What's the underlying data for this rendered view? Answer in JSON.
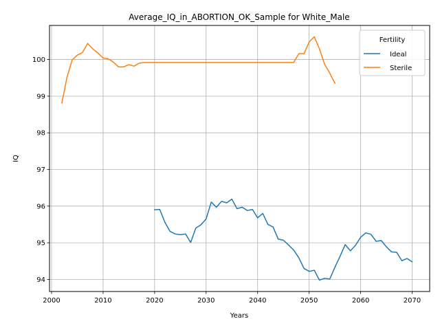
{
  "chart_data": {
    "type": "line",
    "title": "Average_IQ_in_ABORTION_OK_Sample for White_Male",
    "xlabel": "Years",
    "ylabel": "IQ",
    "xlim": [
      1999.6,
      2073.4
    ],
    "ylim": [
      93.67,
      100.93
    ],
    "xticks": [
      2000,
      2010,
      2020,
      2030,
      2040,
      2050,
      2060,
      2070
    ],
    "yticks": [
      94,
      95,
      96,
      97,
      98,
      99,
      100
    ],
    "grid": true,
    "legend": {
      "title": "Fertility",
      "position": "top-right"
    },
    "series": [
      {
        "name": "Ideal",
        "color": "#1f77b4",
        "x": [
          2020,
          2021,
          2022,
          2023,
          2024,
          2025,
          2026,
          2027,
          2028,
          2029,
          2030,
          2031,
          2032,
          2033,
          2034,
          2035,
          2036,
          2037,
          2038,
          2039,
          2040,
          2041,
          2042,
          2043,
          2044,
          2045,
          2046,
          2047,
          2048,
          2049,
          2050,
          2051,
          2052,
          2053,
          2054,
          2055,
          2056,
          2057,
          2058,
          2059,
          2060,
          2061,
          2062,
          2063,
          2064,
          2065,
          2066,
          2067,
          2068,
          2069,
          2070
        ],
        "y": [
          95.9,
          95.91,
          95.56,
          95.31,
          95.24,
          95.22,
          95.24,
          95.01,
          95.4,
          95.49,
          95.65,
          96.11,
          95.97,
          96.13,
          96.09,
          96.19,
          95.93,
          95.97,
          95.88,
          95.91,
          95.68,
          95.8,
          95.5,
          95.43,
          95.1,
          95.07,
          94.94,
          94.8,
          94.59,
          94.3,
          94.22,
          94.25,
          93.98,
          94.03,
          94.01,
          94.33,
          94.63,
          94.95,
          94.78,
          94.93,
          95.15,
          95.27,
          95.23,
          95.04,
          95.06,
          94.89,
          94.75,
          94.74,
          94.51,
          94.57,
          94.48
        ]
      },
      {
        "name": "Sterile",
        "color": "#ff7f0e",
        "x": [
          2002,
          2003,
          2004,
          2005,
          2006,
          2007,
          2008,
          2009,
          2010,
          2011,
          2012,
          2013,
          2014,
          2015,
          2016,
          2017,
          2018,
          2019,
          2020,
          2021,
          2022,
          2023,
          2024,
          2025,
          2026,
          2027,
          2028,
          2029,
          2030,
          2031,
          2032,
          2033,
          2034,
          2035,
          2036,
          2037,
          2038,
          2039,
          2040,
          2041,
          2042,
          2043,
          2044,
          2045,
          2046,
          2047,
          2048,
          2049,
          2050,
          2051,
          2052,
          2053,
          2054,
          2055
        ],
        "y": [
          98.81,
          99.52,
          99.99,
          100.12,
          100.19,
          100.44,
          100.29,
          100.18,
          100.04,
          100.02,
          99.93,
          99.8,
          99.8,
          99.86,
          99.82,
          99.9,
          99.92,
          99.92,
          99.92,
          99.92,
          99.92,
          99.92,
          99.92,
          99.92,
          99.92,
          99.92,
          99.92,
          99.92,
          99.92,
          99.92,
          99.92,
          99.92,
          99.92,
          99.92,
          99.92,
          99.92,
          99.92,
          99.92,
          99.92,
          99.92,
          99.92,
          99.92,
          99.92,
          99.92,
          99.92,
          99.92,
          100.16,
          100.16,
          100.48,
          100.62,
          100.29,
          99.87,
          99.63,
          99.35
        ]
      }
    ]
  }
}
